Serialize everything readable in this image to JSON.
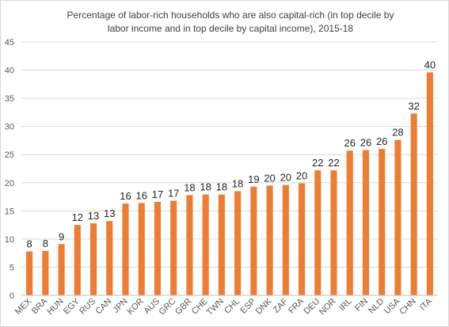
{
  "chart_data": {
    "type": "bar",
    "title_lines": [
      "Percentage of labor-rich households who are also capital-rich (in top decile by",
      "labor income and in top decile by capital income), 2015-18"
    ],
    "categories": [
      "MEX",
      "BRA",
      "HUN",
      "EGY",
      "RUS",
      "CAN",
      "JPN",
      "KOR",
      "AUS",
      "GRC",
      "GBR",
      "CHE",
      "TWN",
      "CHL",
      "ESP",
      "DNK",
      "ZAF",
      "FRA",
      "DEU",
      "NOR",
      "IRL",
      "FIN",
      "NLD",
      "USA",
      "CHN",
      "ITA"
    ],
    "values": [
      7.8,
      7.9,
      9.1,
      12.5,
      12.8,
      13.2,
      16.3,
      16.4,
      16.6,
      16.8,
      17.8,
      17.9,
      17.9,
      18.5,
      19.3,
      19.5,
      19.6,
      19.9,
      22.2,
      22.2,
      25.7,
      25.8,
      26.0,
      27.6,
      32.3,
      39.6
    ],
    "data_labels": [
      "8",
      "8",
      "9",
      "12",
      "13",
      "13",
      "16",
      "16",
      "17",
      "17",
      "18",
      "18",
      "18",
      "18",
      "19",
      "20",
      "20",
      "20",
      "22",
      "22",
      "26",
      "26",
      "26",
      "28",
      "32",
      "40"
    ],
    "xlabel": "",
    "ylabel": "",
    "ylim": [
      0,
      45
    ],
    "yticks": [
      0,
      5,
      10,
      15,
      20,
      25,
      30,
      35,
      40,
      45
    ],
    "grid": true,
    "legend": "none",
    "bar_color": "#ED7D31",
    "grid_color": "#d9d9d9",
    "axis_color": "#bfbfbf"
  }
}
